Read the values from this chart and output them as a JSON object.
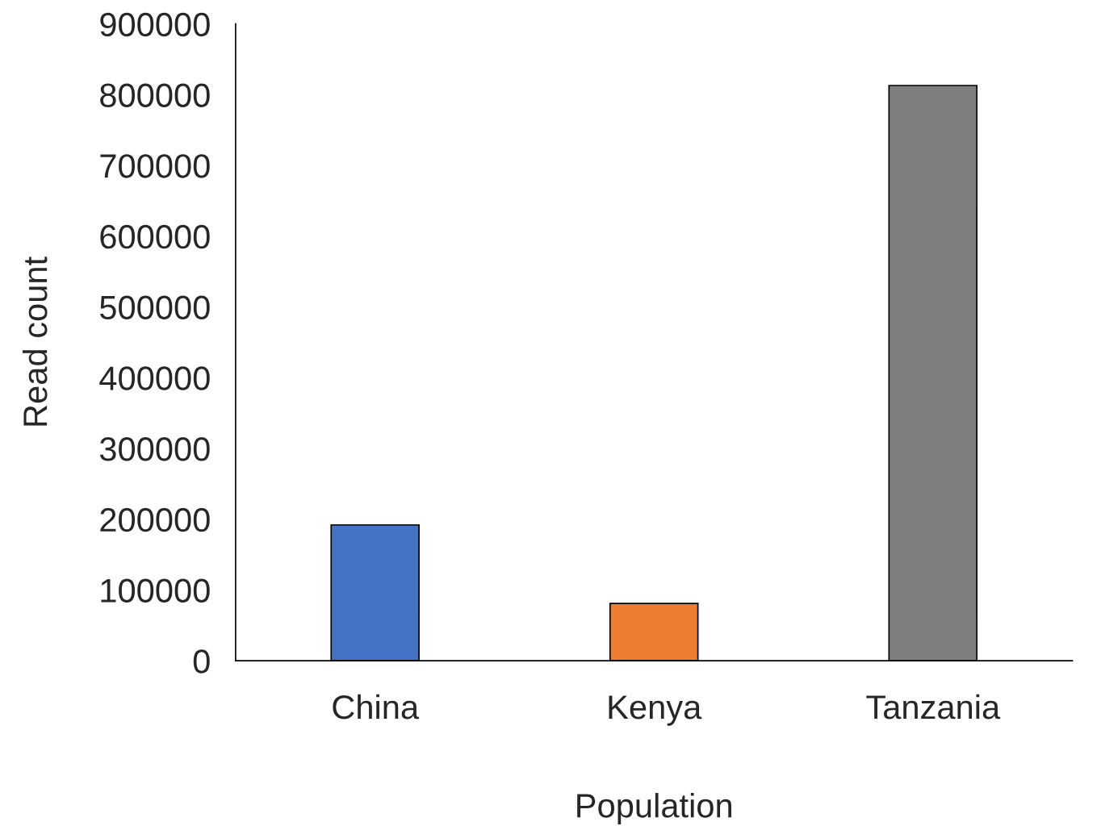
{
  "chart_data": {
    "type": "bar",
    "xlabel": "Population",
    "ylabel": "Read count",
    "categories": [
      "China",
      "Kenya",
      "Tanzania"
    ],
    "values": [
      192000,
      81000,
      813000
    ],
    "colors": [
      "#4472c4",
      "#ed7d31",
      "#7f7f7f"
    ],
    "ylim": [
      0,
      900000
    ],
    "yticks": [
      0,
      100000,
      200000,
      300000,
      400000,
      500000,
      600000,
      700000,
      800000,
      900000
    ],
    "grid": false,
    "legend": false
  }
}
